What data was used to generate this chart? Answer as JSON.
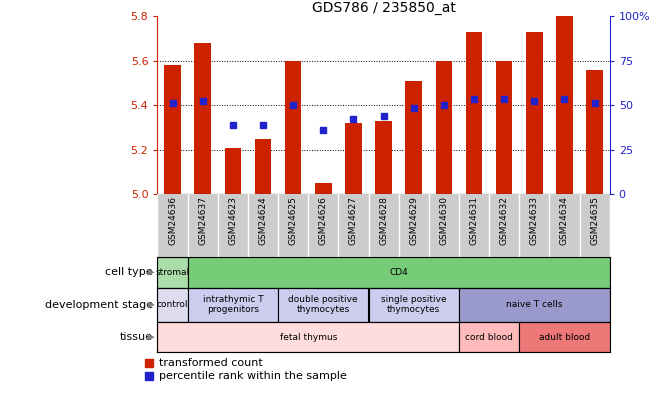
{
  "title": "GDS786 / 235850_at",
  "samples": [
    "GSM24636",
    "GSM24637",
    "GSM24623",
    "GSM24624",
    "GSM24625",
    "GSM24626",
    "GSM24627",
    "GSM24628",
    "GSM24629",
    "GSM24630",
    "GSM24631",
    "GSM24632",
    "GSM24633",
    "GSM24634",
    "GSM24635"
  ],
  "bar_values": [
    5.58,
    5.68,
    5.21,
    5.25,
    5.6,
    5.05,
    5.32,
    5.33,
    5.51,
    5.6,
    5.73,
    5.6,
    5.73,
    5.8,
    5.56
  ],
  "dot_values": [
    5.41,
    5.42,
    5.31,
    5.31,
    5.4,
    5.29,
    5.34,
    5.35,
    5.39,
    5.4,
    5.43,
    5.43,
    5.42,
    5.43,
    5.41
  ],
  "ylim": [
    5.0,
    5.8
  ],
  "yticks": [
    5.0,
    5.2,
    5.4,
    5.6,
    5.8
  ],
  "right_yticks": [
    0,
    25,
    50,
    75,
    100
  ],
  "right_ytick_labels": [
    "0",
    "25",
    "50",
    "75",
    "100%"
  ],
  "bar_color": "#cc2200",
  "dot_color": "#2222cc",
  "cell_type_groups": [
    {
      "label": "stromal",
      "start": 0,
      "end": 1,
      "color": "#aaddaa"
    },
    {
      "label": "CD4",
      "start": 1,
      "end": 15,
      "color": "#77cc77"
    }
  ],
  "dev_stage_groups": [
    {
      "label": "control",
      "start": 0,
      "end": 1,
      "color": "#ddddee"
    },
    {
      "label": "intrathymic T\nprogenitors",
      "start": 1,
      "end": 4,
      "color": "#ccccee"
    },
    {
      "label": "double positive\nthymocytes",
      "start": 4,
      "end": 7,
      "color": "#ccccee"
    },
    {
      "label": "single positive\nthymocytes",
      "start": 7,
      "end": 10,
      "color": "#ccccee"
    },
    {
      "label": "naive T cells",
      "start": 10,
      "end": 15,
      "color": "#9999cc"
    }
  ],
  "tissue_groups": [
    {
      "label": "fetal thymus",
      "start": 0,
      "end": 10,
      "color": "#ffdddd"
    },
    {
      "label": "cord blood",
      "start": 10,
      "end": 12,
      "color": "#ffbbbb"
    },
    {
      "label": "adult blood",
      "start": 12,
      "end": 15,
      "color": "#ee7777"
    }
  ]
}
